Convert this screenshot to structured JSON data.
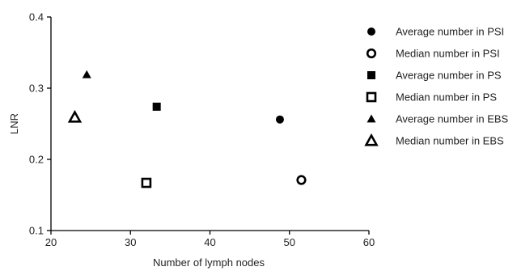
{
  "chart_data": {
    "type": "scatter",
    "xlabel": "Number of lymph nodes",
    "ylabel": "LNR",
    "xlim": [
      20,
      60
    ],
    "ylim": [
      0.1,
      0.4
    ],
    "x_ticks": [
      20,
      30,
      40,
      50,
      60
    ],
    "y_ticks": [
      0.1,
      0.2,
      0.3,
      0.4
    ],
    "x_tick_labels": [
      "20",
      "30",
      "40",
      "50",
      "60"
    ],
    "y_tick_labels": [
      "0.1",
      "0.2",
      "0.3",
      "0.4"
    ],
    "grid": false,
    "legend_position": "right",
    "series": [
      {
        "name": "Average number in PSI",
        "marker": "filled-circle",
        "points": [
          {
            "x": 48.8,
            "y": 0.256
          }
        ]
      },
      {
        "name": "Median number in PSI",
        "marker": "open-circle",
        "points": [
          {
            "x": 51.5,
            "y": 0.171
          }
        ]
      },
      {
        "name": "Average number in PS",
        "marker": "filled-square",
        "points": [
          {
            "x": 33.3,
            "y": 0.274
          }
        ]
      },
      {
        "name": "Median number in PS",
        "marker": "open-square",
        "points": [
          {
            "x": 32.0,
            "y": 0.167
          }
        ]
      },
      {
        "name": "Average number in EBS",
        "marker": "filled-triangle",
        "points": [
          {
            "x": 24.5,
            "y": 0.319
          }
        ]
      },
      {
        "name": "Median number in EBS",
        "marker": "open-triangle",
        "points": [
          {
            "x": 23.0,
            "y": 0.259
          }
        ]
      }
    ],
    "colors": {
      "marker": "#000000",
      "axis": "#000000"
    }
  }
}
